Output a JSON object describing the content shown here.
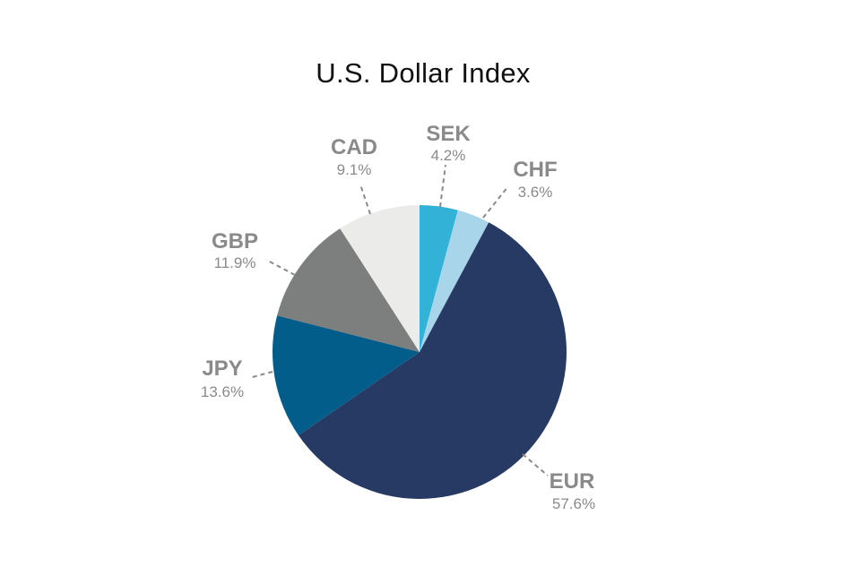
{
  "chart_data": {
    "type": "pie",
    "title": "U.S. Dollar Index",
    "slices": [
      {
        "label": "SEK",
        "value": 4.2,
        "value_label": "4.2%",
        "color": "#31b2d6"
      },
      {
        "label": "CHF",
        "value": 3.6,
        "value_label": "3.6%",
        "color": "#a8d5ea"
      },
      {
        "label": "EUR",
        "value": 57.6,
        "value_label": "57.6%",
        "color": "#273a64"
      },
      {
        "label": "JPY",
        "value": 13.6,
        "value_label": "13.6%",
        "color": "#035d8b"
      },
      {
        "label": "GBP",
        "value": 11.9,
        "value_label": "11.9%",
        "color": "#7d7e7e"
      },
      {
        "label": "CAD",
        "value": 9.1,
        "value_label": "9.1%",
        "color": "#ebebea"
      }
    ],
    "start_angle_deg": 0,
    "direction": "clockwise",
    "label_color": "#8a8a8a"
  }
}
